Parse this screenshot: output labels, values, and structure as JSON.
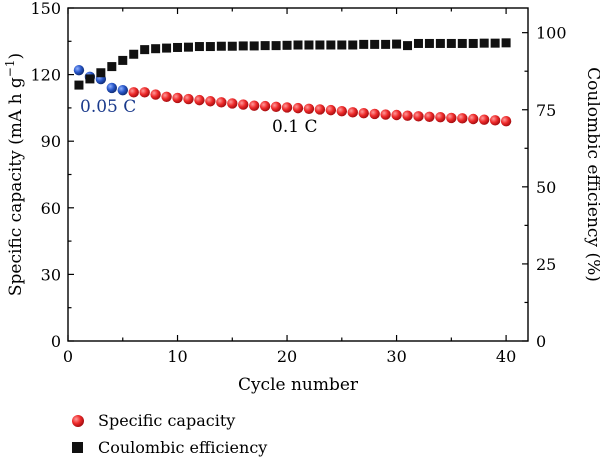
{
  "chart_data": {
    "type": "scatter",
    "xlabel": "Cycle number",
    "ylabel_left": "Specific capacity (mA h g",
    "ylabel_left_sup": "−1",
    "ylabel_left_close": ")",
    "ylabel_right": "Coulombic efficiency (%)",
    "xlim": [
      0,
      42
    ],
    "ylim_left": [
      0,
      150
    ],
    "ylim_right": [
      0,
      108
    ],
    "x_ticks": [
      0,
      10,
      20,
      30,
      40
    ],
    "y_left_ticks": [
      0,
      30,
      60,
      90,
      120,
      150
    ],
    "y_right_ticks": [
      0,
      25,
      50,
      75,
      100
    ],
    "annotations": [
      {
        "text": "0.05 C",
        "color": "#1a3a8c"
      },
      {
        "text": "0.1 C",
        "color": "#000000"
      }
    ],
    "series": [
      {
        "name": "Specific capacity",
        "axis": "left",
        "marker": "circle",
        "x": [
          1,
          2,
          3,
          4,
          5
        ],
        "values": [
          122,
          119,
          118,
          114,
          113
        ],
        "color": "#1f48b0"
      },
      {
        "name": "Specific capacity",
        "axis": "left",
        "marker": "circle",
        "x": [
          6,
          7,
          8,
          9,
          10,
          11,
          12,
          13,
          14,
          15,
          16,
          17,
          18,
          19,
          20,
          21,
          22,
          23,
          24,
          25,
          26,
          27,
          28,
          29,
          30,
          31,
          32,
          33,
          34,
          35,
          36,
          37,
          38,
          39,
          40
        ],
        "values": [
          112,
          112,
          111,
          110,
          109.5,
          109,
          108.5,
          108,
          107.5,
          107,
          106.5,
          106,
          105.8,
          105.5,
          105.2,
          104.9,
          104.6,
          104.3,
          104,
          103.5,
          103,
          102.6,
          102.3,
          102,
          101.8,
          101.5,
          101.2,
          101,
          100.8,
          100.5,
          100.3,
          100,
          99.7,
          99.4,
          99
        ],
        "color": "#e8191d"
      },
      {
        "name": "Coulombic efficiency",
        "axis": "right",
        "marker": "square",
        "x": [
          1,
          2,
          3,
          4,
          5,
          6,
          7,
          8,
          9,
          10,
          11,
          12,
          13,
          14,
          15,
          16,
          17,
          18,
          19,
          20,
          21,
          22,
          23,
          24,
          25,
          26,
          27,
          28,
          29,
          30,
          31,
          32,
          33,
          34,
          35,
          36,
          37,
          38,
          39,
          40
        ],
        "values": [
          83,
          85,
          87,
          89,
          91,
          93,
          94.5,
          94.8,
          95,
          95.2,
          95.3,
          95.5,
          95.5,
          95.6,
          95.6,
          95.7,
          95.7,
          95.8,
          95.8,
          95.9,
          96,
          96,
          96,
          96,
          96,
          96,
          96.2,
          96.2,
          96.2,
          96.3,
          95.8,
          96.5,
          96.5,
          96.5,
          96.5,
          96.5,
          96.5,
          96.6,
          96.6,
          96.7
        ],
        "color": "#111111"
      }
    ],
    "legend": [
      {
        "label": "Specific capacity",
        "marker": "circle",
        "color": "#e8191d"
      },
      {
        "label": "Coulombic efficiency",
        "marker": "square",
        "color": "#111111"
      }
    ],
    "legend_position": "bottom-left",
    "grid": false
  }
}
